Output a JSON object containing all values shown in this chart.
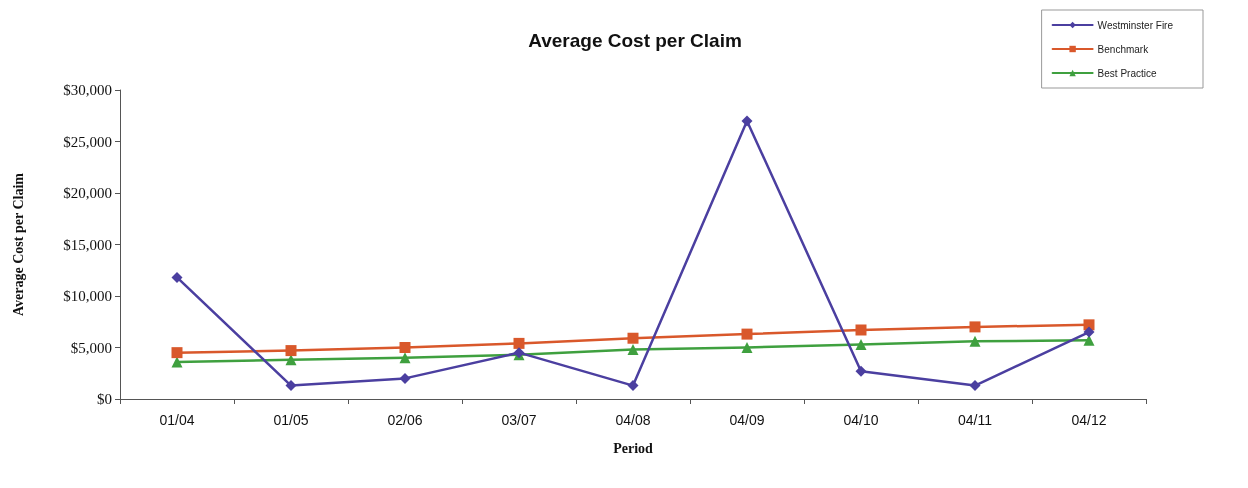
{
  "chart_data": {
    "type": "line",
    "title": "Average Cost per Claim",
    "xlabel": "Period",
    "ylabel": "Average Cost per Claim",
    "categories": [
      "01/04",
      "01/05",
      "02/06",
      "03/07",
      "04/08",
      "04/09",
      "04/10",
      "04/11",
      "04/12"
    ],
    "series": [
      {
        "name": "Westminster Fire",
        "color": "#4b3fa0",
        "marker": "diamond",
        "values": [
          11800,
          1300,
          2000,
          4500,
          1300,
          27000,
          2700,
          1300,
          6500
        ]
      },
      {
        "name": "Benchmark",
        "color": "#d9582b",
        "marker": "square",
        "values": [
          4500,
          4700,
          5000,
          5400,
          5900,
          6300,
          6700,
          7000,
          7200
        ]
      },
      {
        "name": "Best Practice",
        "color": "#3fa03f",
        "marker": "triangle",
        "values": [
          3600,
          3800,
          4000,
          4300,
          4800,
          5000,
          5300,
          5600,
          5700
        ]
      }
    ],
    "ylim": [
      0,
      30000
    ],
    "yticks": [
      {
        "value": 0,
        "label": "$0"
      },
      {
        "value": 5000,
        "label": "$5,000"
      },
      {
        "value": 10000,
        "label": "$10,000"
      },
      {
        "value": 15000,
        "label": "$15,000"
      },
      {
        "value": 20000,
        "label": "$20,000"
      },
      {
        "value": 25000,
        "label": "$25,000"
      },
      {
        "value": 30000,
        "label": "$30,000"
      }
    ],
    "grid": false,
    "legend": "top right",
    "line_style": "solid"
  }
}
